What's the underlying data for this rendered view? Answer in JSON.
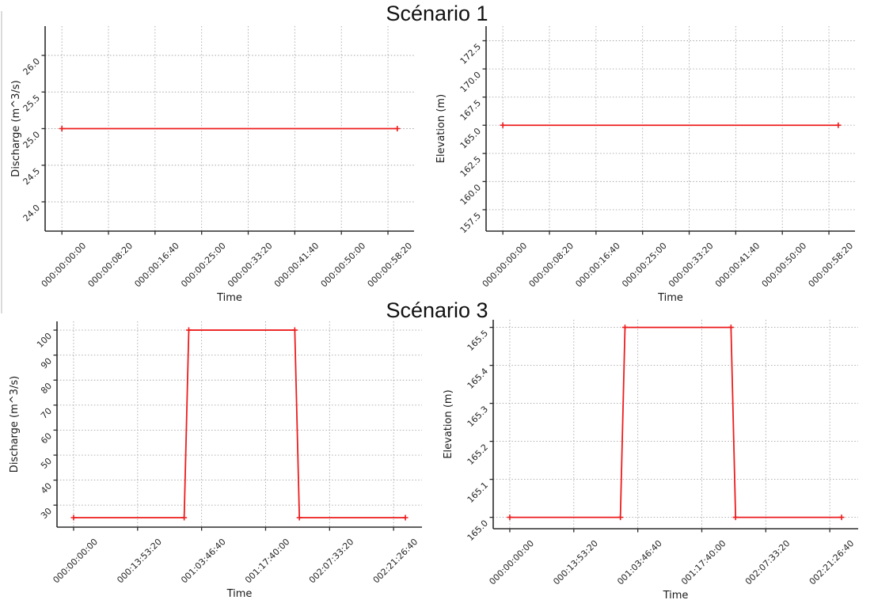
{
  "page": {
    "background": "#ffffff"
  },
  "figures": [
    {
      "title": "Scénario 1"
    },
    {
      "title": "Scénario 3"
    }
  ],
  "colors": {
    "line": "#ed1c1d",
    "grid": "#a6a6a6",
    "axis": "#2b2b2b",
    "text": "#262626",
    "figure_edge": "#cfcfcf"
  },
  "chart_data": [
    {
      "id": "scenario1-discharge",
      "type": "line",
      "figure_title": "Scénario 1",
      "xlabel": "Time",
      "ylabel": "Discharge (m^3/s)",
      "x": [
        0,
        3600
      ],
      "y": [
        25.0,
        25.0
      ],
      "xlim": [
        -180,
        3780
      ],
      "ylim": [
        23.6,
        26.4
      ],
      "xticks": [
        0,
        500,
        1000,
        1500,
        2000,
        2500,
        3000,
        3500
      ],
      "xtick_labels": [
        "000:00:00:00",
        "000:00:08:20",
        "000:00:16:40",
        "000:00:25:00",
        "000:00:33:20",
        "000:00:41:40",
        "000:00:50:00",
        "000:00:58:20"
      ],
      "yticks": [
        24.0,
        24.5,
        25.0,
        25.5,
        26.0
      ],
      "ytick_labels": [
        "24.0",
        "24.5",
        "25.0",
        "25.5",
        "26.0"
      ],
      "grid": true,
      "marker": "plus",
      "legend": "none"
    },
    {
      "id": "scenario1-elevation",
      "type": "line",
      "figure_title": "Scénario 1",
      "xlabel": "Time",
      "ylabel": "Elevation (m)",
      "x": [
        0,
        3600
      ],
      "y": [
        165.0,
        165.0
      ],
      "xlim": [
        -180,
        3780
      ],
      "ylim": [
        155.6,
        173.8
      ],
      "xticks": [
        0,
        500,
        1000,
        1500,
        2000,
        2500,
        3000,
        3500
      ],
      "xtick_labels": [
        "000:00:00:00",
        "000:00:08:20",
        "000:00:16:40",
        "000:00:25:00",
        "000:00:33:20",
        "000:00:41:40",
        "000:00:50:00",
        "000:00:58:20"
      ],
      "yticks": [
        157.5,
        160.0,
        162.5,
        165.0,
        167.5,
        170.0,
        172.5
      ],
      "ytick_labels": [
        "157.5",
        "160.0",
        "162.5",
        "165.0",
        "167.5",
        "170.0",
        "172.5"
      ],
      "grid": true,
      "marker": "plus",
      "legend": "none"
    },
    {
      "id": "scenario3-discharge",
      "type": "line",
      "figure_title": "Scénario 3",
      "xlabel": "Time",
      "ylabel": "Discharge (m^3/s)",
      "x": [
        0,
        86400,
        90000,
        172800,
        176400,
        259200
      ],
      "y": [
        25,
        25,
        100,
        100,
        25,
        25
      ],
      "xlim": [
        -12960,
        272160
      ],
      "ylim": [
        21.2,
        103.5
      ],
      "xticks": [
        0,
        50000,
        100000,
        150000,
        200000,
        250000
      ],
      "xtick_labels": [
        "000:00:00:00",
        "000:13:53:20",
        "001:03:46:40",
        "001:17:40:00",
        "002:07:33:20",
        "002:21:26:40"
      ],
      "yticks": [
        30,
        40,
        50,
        60,
        70,
        80,
        90,
        100
      ],
      "ytick_labels": [
        "30",
        "40",
        "50",
        "60",
        "70",
        "80",
        "90",
        "100"
      ],
      "grid": true,
      "marker": "plus",
      "legend": "none"
    },
    {
      "id": "scenario3-elevation",
      "type": "line",
      "figure_title": "Scénario 3",
      "xlabel": "Time",
      "ylabel": "Elevation (m)",
      "x": [
        0,
        86400,
        90000,
        172800,
        176400,
        259200
      ],
      "y": [
        165.0,
        165.0,
        165.5,
        165.5,
        165.0,
        165.0
      ],
      "xlim": [
        -12960,
        272160
      ],
      "ylim": [
        164.97,
        165.52
      ],
      "xticks": [
        0,
        50000,
        100000,
        150000,
        200000,
        250000
      ],
      "xtick_labels": [
        "000:00:00:00",
        "000:13:53:20",
        "001:03:46:40",
        "001:17:40:00",
        "002:07:33:20",
        "002:21:26:40"
      ],
      "yticks": [
        165.0,
        165.1,
        165.2,
        165.3,
        165.4,
        165.5
      ],
      "ytick_labels": [
        "165.0",
        "165.1",
        "165.2",
        "165.3",
        "165.4",
        "165.5"
      ],
      "grid": true,
      "marker": "plus",
      "legend": "none"
    }
  ]
}
